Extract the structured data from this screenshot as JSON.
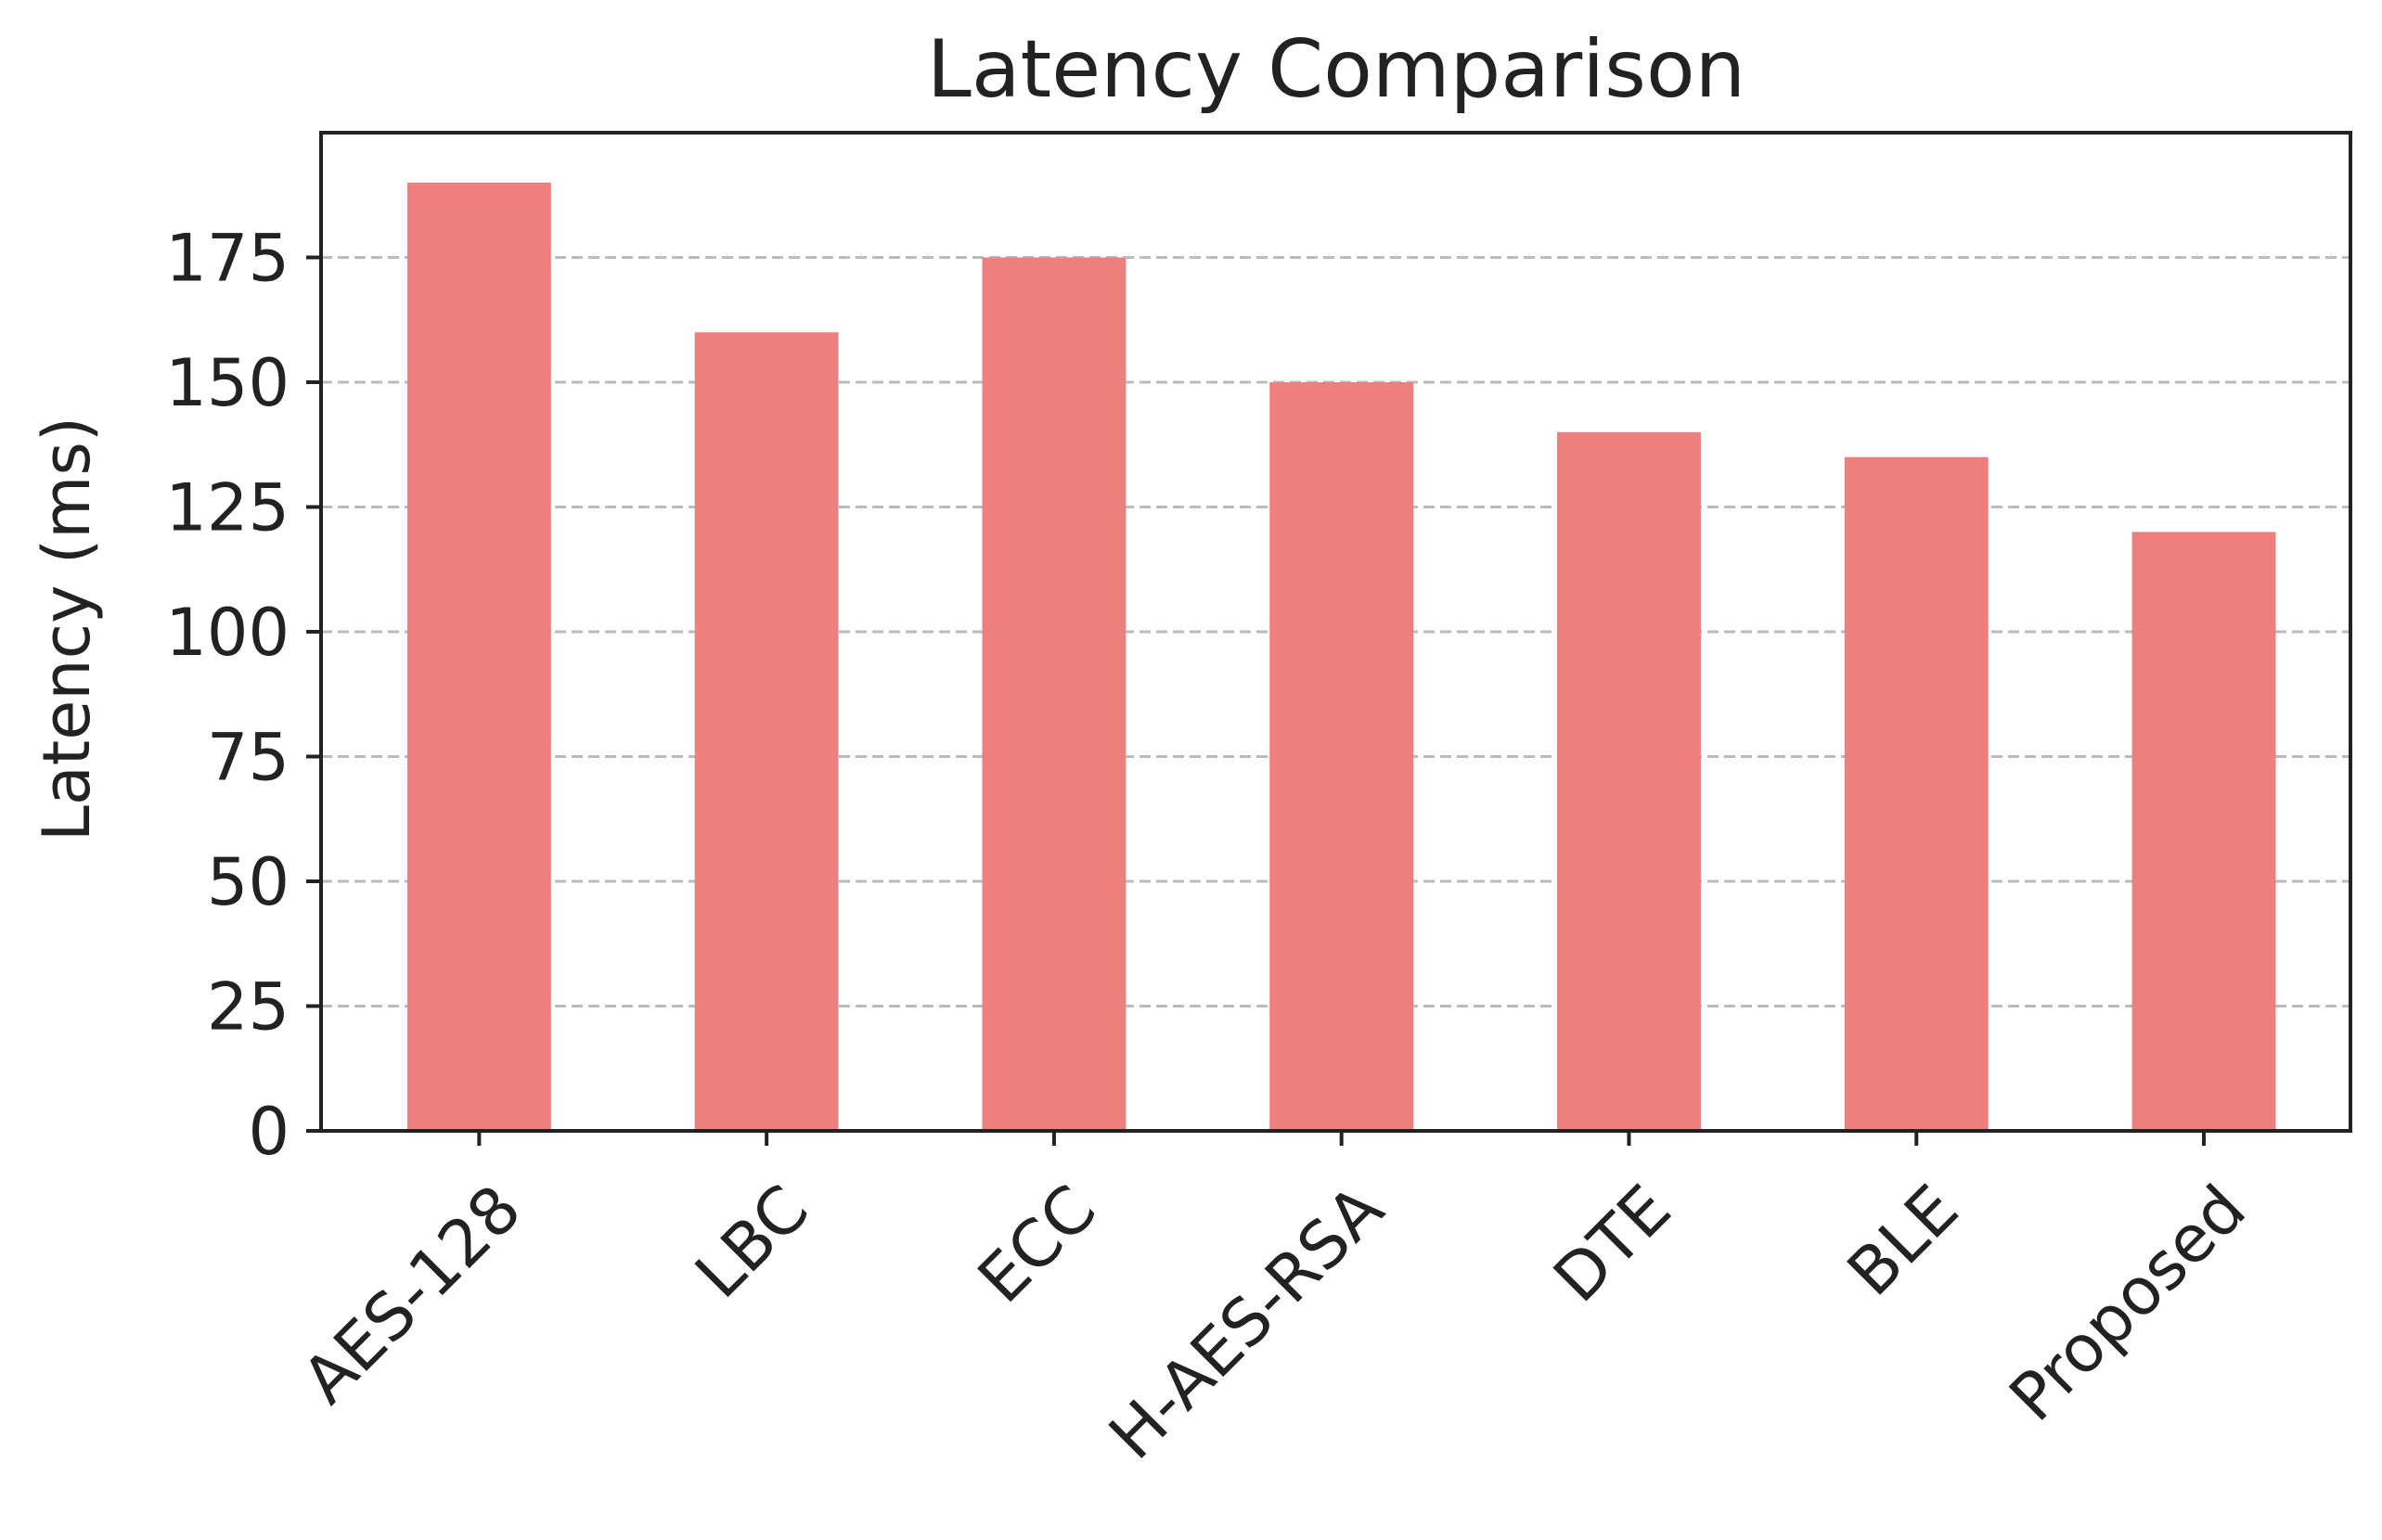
{
  "chart_data": {
    "type": "bar",
    "title": "Latency Comparison",
    "xlabel": "",
    "ylabel": "Latency (ms)",
    "categories": [
      "AES-128",
      "LBC",
      "ECC",
      "H-AES-RSA",
      "DTE",
      "BLE",
      "Proposed"
    ],
    "values": [
      190,
      160,
      175,
      150,
      140,
      135,
      120
    ],
    "ylim": [
      0,
      200
    ],
    "yticks": [
      0,
      25,
      50,
      75,
      100,
      125,
      150,
      175
    ],
    "grid": "horizontal dashed",
    "bar_color": "#ee7f7f",
    "grid_color": "#bbbbbb",
    "axis_color": "#222222"
  }
}
